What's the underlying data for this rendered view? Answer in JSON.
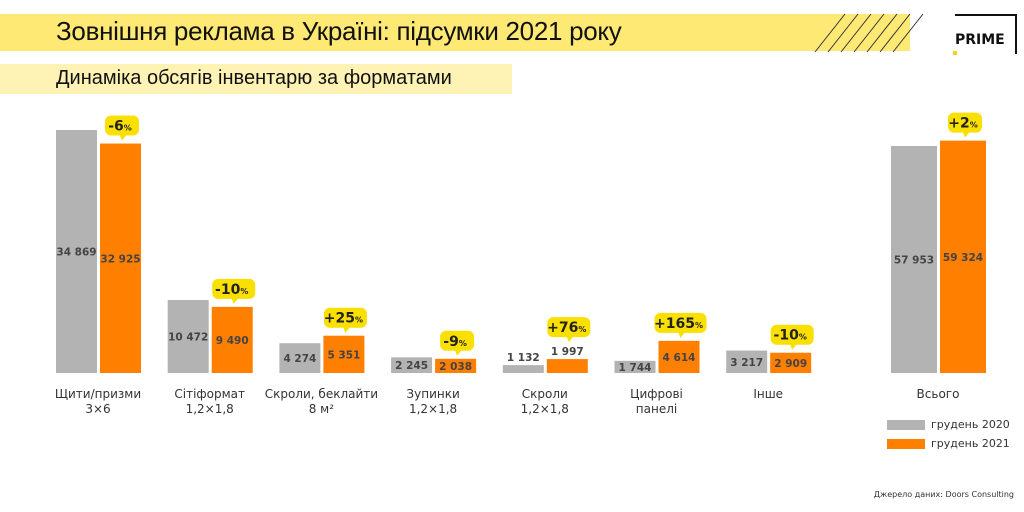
{
  "header": {
    "title": "Зовнішня реклама в Україні: підсумки 2021 року",
    "subtitle": "Динаміка обсягів інвентарю за форматами",
    "logo_text": "PRIME"
  },
  "colors": {
    "series_2020": "#b3b3b3",
    "series_2021": "#ff7f00",
    "bubble": "#f9e000",
    "title_band": "#fde974"
  },
  "chart_data": {
    "type": "bar",
    "categories": [
      [
        "Щити/призми",
        "3×6"
      ],
      [
        "Сітіформат",
        "1,2×1,8"
      ],
      [
        "Скроли, беклайти",
        "8 м²"
      ],
      [
        "Зупинки",
        "1,2×1,8"
      ],
      [
        "Скроли",
        "1,2×1,8"
      ],
      [
        "Цифрові",
        "панелі"
      ],
      [
        "Інше",
        ""
      ]
    ],
    "series": [
      {
        "name": "грудень 2020",
        "values": [
          34869,
          10472,
          4274,
          2245,
          1132,
          1744,
          3217
        ]
      },
      {
        "name": "грудень 2021",
        "values": [
          32925,
          9490,
          5351,
          2038,
          1997,
          4614,
          2909
        ]
      }
    ],
    "value_labels_2020": [
      "34 869",
      "10 472",
      "4 274",
      "2 245",
      "1 132",
      "1 744",
      "3 217"
    ],
    "value_labels_2021": [
      "32 925",
      "9 490",
      "5 351",
      "2 038",
      "1 997",
      "4 614",
      "2 909"
    ],
    "changes": [
      "-6",
      "-10",
      "+25",
      "-9",
      "+76",
      "+165",
      "-10"
    ],
    "change_unit": "%",
    "total": {
      "label": "Всього",
      "values": [
        57953,
        59324
      ],
      "value_labels": [
        "57 953",
        "59 324"
      ],
      "change": "+2"
    },
    "legend_placement": "bottom-right",
    "grid": false
  },
  "legend": {
    "items": [
      "грудень 2020",
      "грудень 2021"
    ]
  },
  "source": "Джерело даних: Doors Consulting"
}
